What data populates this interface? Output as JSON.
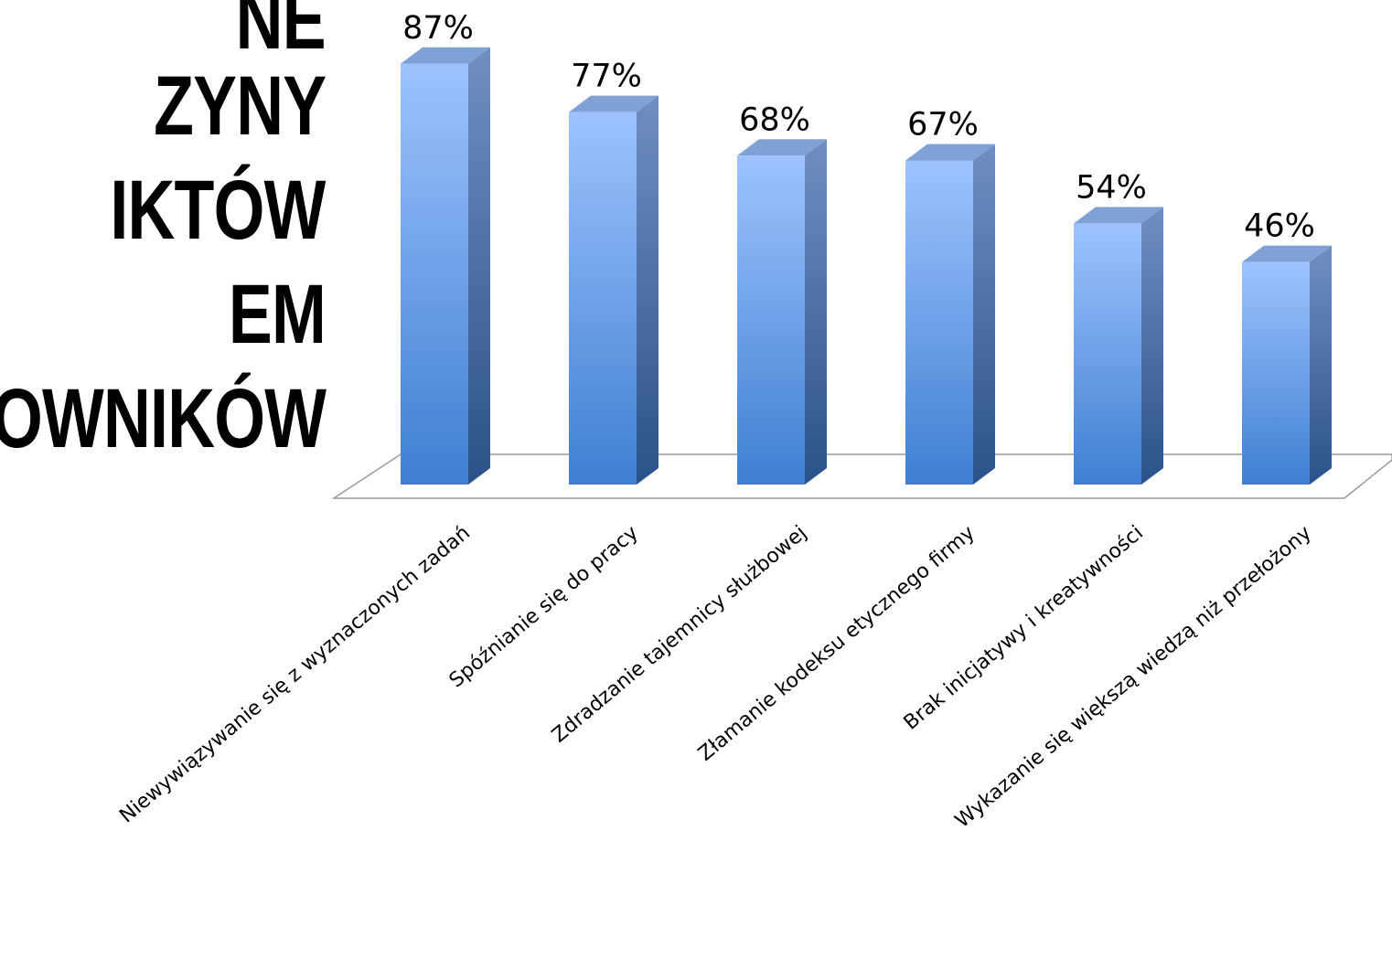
{
  "slide": {
    "title_lines": [
      "NE",
      "ZYNY",
      "IKTÓW",
      "EM",
      "OWNIKÓW"
    ]
  },
  "chart_data": {
    "type": "bar",
    "style": "3d-column",
    "categories": [
      "Niewywiązywanie się z wyznaczonych zadań",
      "Spóźnianie się do pracy",
      "Zdradzanie tajemnicy służbowej",
      "Złamanie kodeksu etycznego firmy",
      "Brak inicjatywy i kreatywności",
      "Wykazanie się większą wiedzą niż przełożony"
    ],
    "values": [
      87,
      77,
      68,
      67,
      54,
      46
    ],
    "data_labels": [
      "87%",
      "77%",
      "68%",
      "67%",
      "54%",
      "46%"
    ],
    "unit": "%",
    "ylim": [
      0,
      100
    ],
    "grid": false,
    "legend": "none",
    "colors": {
      "bar_top": "#9dc3ff",
      "bar_bottom": "#3f7fd1",
      "bar_side_top": "#6f8fc0",
      "bar_side_bottom": "#2a5289",
      "bar_cap": "#7fa1d6",
      "floor_stroke": "#9a9a9a"
    }
  }
}
